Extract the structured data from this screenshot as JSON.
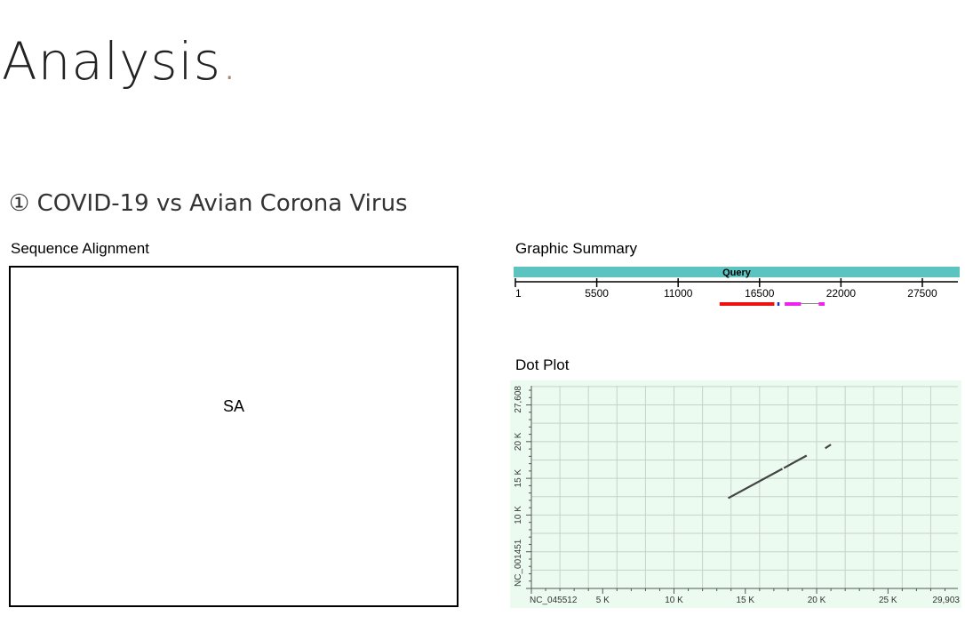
{
  "page": {
    "title": "Analysis",
    "title_dot": ".",
    "subtitle": "① COVID-19 vs Avian Corona Virus",
    "sequence_alignment_label": "Sequence Alignment",
    "sequence_alignment_placeholder": "SA",
    "graphic_summary_label": "Graphic Summary",
    "dot_plot_label": "Dot Plot"
  },
  "colors": {
    "query_bar": "#5bc4c0",
    "hit_red": "#ee1111",
    "hit_blue": "#1a2fd0",
    "hit_magenta": "#ee22ee",
    "dotplot_bg": "#ebfbef",
    "gridline": "#c8d2c8",
    "title_dot": "#a9876a"
  },
  "chart_data": [
    {
      "type": "bar",
      "query_label": "Query",
      "xlim": [
        1,
        29903
      ],
      "ticks": [
        1,
        5500,
        11000,
        16500,
        22000,
        27500
      ],
      "tick_labels": [
        "1",
        "5500",
        "11000",
        "16500",
        "22000",
        "27500"
      ],
      "hits": [
        {
          "start": 13800,
          "end": 17500,
          "color": "red"
        },
        {
          "start": 17700,
          "end": 17850,
          "color": "blue"
        },
        {
          "start": 18200,
          "end": 19300,
          "color": "magenta"
        },
        {
          "start": 19300,
          "end": 20500,
          "color": "connector"
        },
        {
          "start": 20500,
          "end": 20900,
          "color": "magenta"
        }
      ]
    },
    {
      "type": "scatter",
      "xlim": [
        0,
        29903
      ],
      "ylim": [
        0,
        27608
      ],
      "x_tick_labels": [
        {
          "value": 0,
          "label": "NC_045512"
        },
        {
          "value": 5000,
          "label": "5 K"
        },
        {
          "value": 10000,
          "label": "10 K"
        },
        {
          "value": 15000,
          "label": "15 K"
        },
        {
          "value": 20000,
          "label": "20 K"
        },
        {
          "value": 25000,
          "label": "25 K"
        },
        {
          "value": 29903,
          "label": "29,903"
        }
      ],
      "y_tick_labels": [
        {
          "value": 0,
          "label": "NC_001451"
        },
        {
          "value": 10000,
          "label": "10 K"
        },
        {
          "value": 15000,
          "label": "15 K"
        },
        {
          "value": 20000,
          "label": "20 K"
        },
        {
          "value": 27608,
          "label": "27,608"
        }
      ],
      "segments": [
        {
          "x1": 13800,
          "y1": 12300,
          "x2": 17600,
          "y2": 16300
        },
        {
          "x1": 17700,
          "y1": 16400,
          "x2": 19300,
          "y2": 18100
        },
        {
          "x1": 20600,
          "y1": 19100,
          "x2": 21000,
          "y2": 19600
        }
      ]
    }
  ]
}
